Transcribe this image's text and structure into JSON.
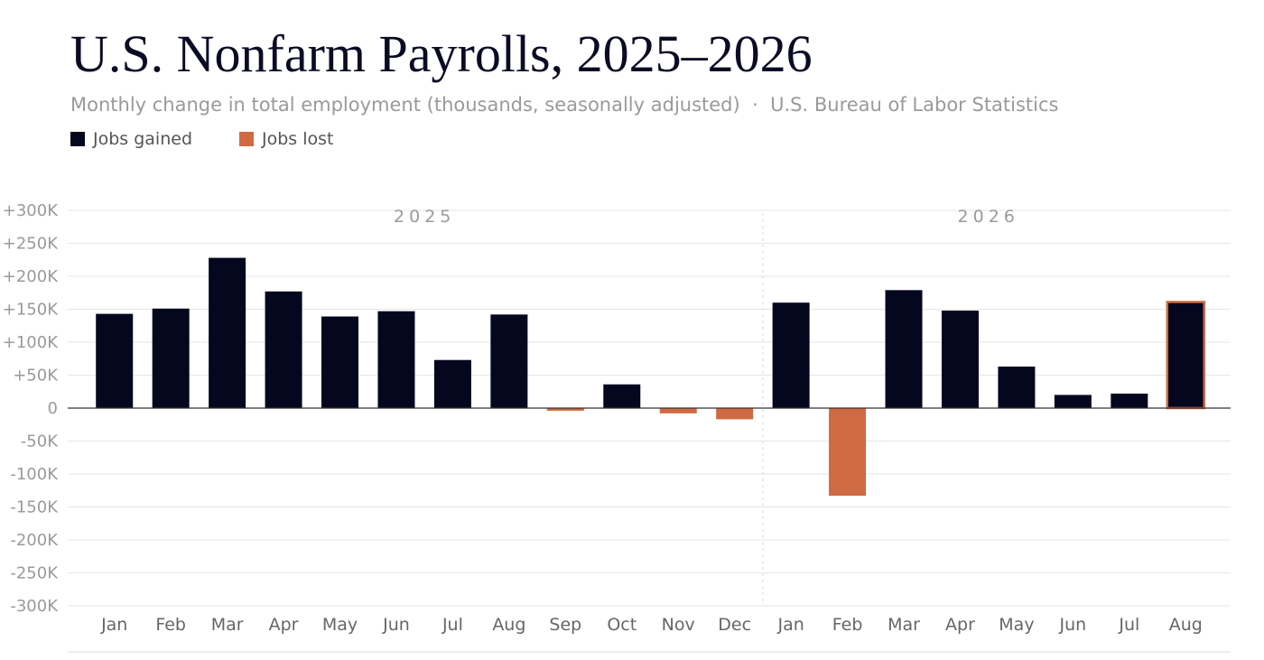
{
  "title": "U.S. Nonfarm Payrolls, 2025–2026",
  "subtitle": "Monthly change in total employment (thousands, seasonally adjusted)",
  "source": "U.S. Bureau of Labor Statistics",
  "separator": "·",
  "legend": [
    {
      "label": "Jobs gained",
      "color": "#05071f"
    },
    {
      "label": "Jobs lost",
      "color": "#d06a42"
    }
  ],
  "colors": {
    "gain": "#05071f",
    "loss": "#d06a42",
    "grid": "#e6e6e6",
    "zero": "#333333"
  },
  "chart_data": {
    "type": "bar",
    "title": "U.S. Nonfarm Payrolls, 2025–2026",
    "ylabel": "",
    "xlabel": "",
    "ylim": [
      -300,
      300
    ],
    "grid": true,
    "legend_position": "top-left",
    "y_ticks": [
      {
        "value": 300,
        "label": "+300K"
      },
      {
        "value": 250,
        "label": "+250K"
      },
      {
        "value": 200,
        "label": "+200K"
      },
      {
        "value": 150,
        "label": "+150K"
      },
      {
        "value": 100,
        "label": "+100K"
      },
      {
        "value": 50,
        "label": "+50K"
      },
      {
        "value": 0,
        "label": "0"
      },
      {
        "value": -50,
        "label": "-50K"
      },
      {
        "value": -100,
        "label": "-100K"
      },
      {
        "value": -150,
        "label": "-150K"
      },
      {
        "value": -200,
        "label": "-200K"
      },
      {
        "value": -250,
        "label": "-250K"
      },
      {
        "value": -300,
        "label": "-300K"
      }
    ],
    "groups": [
      {
        "year": "2025",
        "months": [
          "Jan",
          "Feb",
          "Mar",
          "Apr",
          "May",
          "Jun",
          "Jul",
          "Aug",
          "Sep",
          "Oct",
          "Nov",
          "Dec"
        ],
        "values": [
          143,
          151,
          228,
          177,
          139,
          147,
          73,
          142,
          -4,
          36,
          -8,
          -17
        ]
      },
      {
        "year": "2026",
        "months": [
          "Jan",
          "Feb",
          "Mar",
          "Apr",
          "May",
          "Jun",
          "Jul",
          "Aug"
        ],
        "values": [
          160,
          -133,
          179,
          148,
          63,
          20,
          22,
          161
        ]
      }
    ],
    "highlighted": {
      "year": "2026",
      "month": "Aug"
    }
  }
}
